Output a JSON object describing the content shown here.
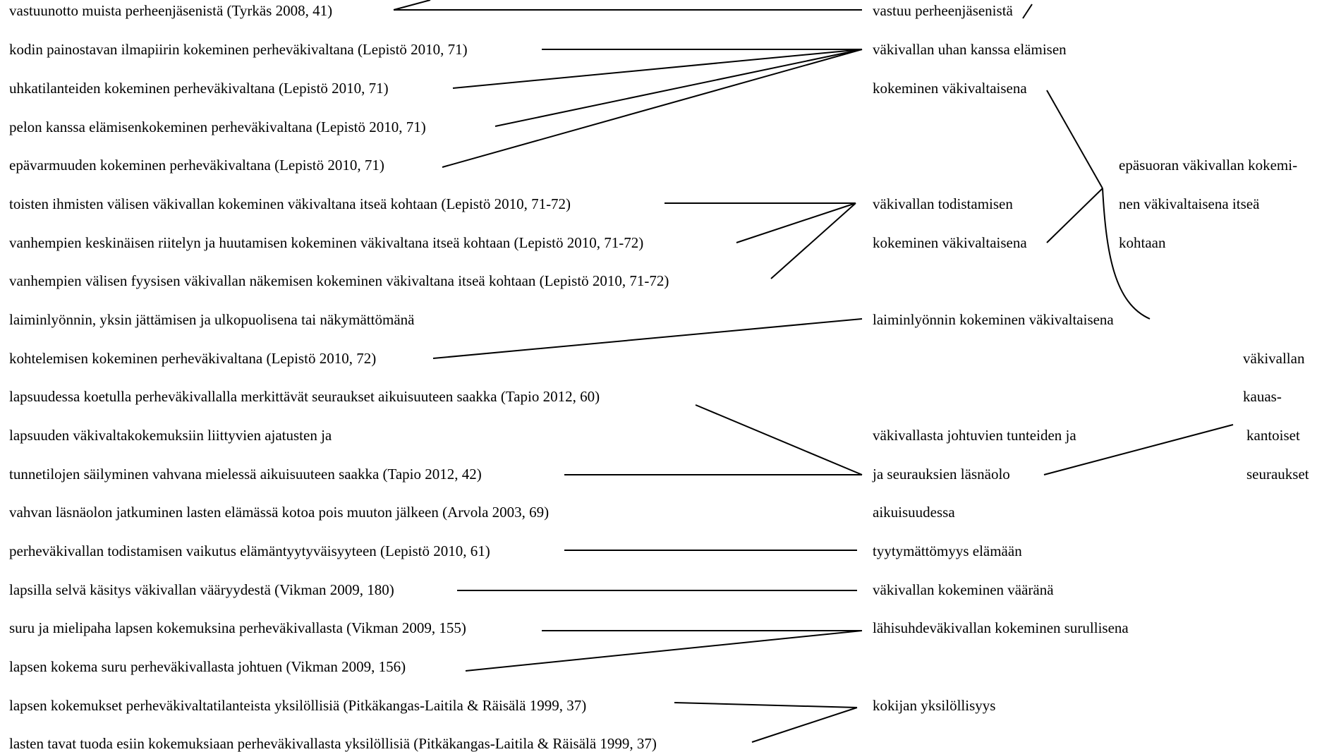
{
  "left_items": [
    "vastuunotto muista perheenjäsenistä (Tyrkäs 2008, 41)",
    "kodin painostavan ilmapiirin kokeminen perheväkivaltana (Lepistö 2010, 71)",
    "uhkatilanteiden kokeminen perheväkivaltana (Lepistö 2010, 71)",
    "pelon kanssa elämisenkokeminen perheväkivaltana (Lepistö 2010, 71)",
    "epävarmuuden kokeminen perheväkivaltana (Lepistö 2010, 71)",
    "toisten ihmisten välisen väkivallan kokeminen väkivaltana itseä kohtaan (Lepistö 2010, 71-72)",
    "vanhempien keskinäisen riitelyn ja huutamisen kokeminen väkivaltana itseä kohtaan (Lepistö 2010, 71-72)",
    "vanhempien välisen fyysisen väkivallan näkemisen kokeminen väkivaltana itseä kohtaan (Lepistö 2010, 71-72)",
    "laiminlyönnin, yksin jättämisen ja ulkopuolisena tai näkymättömänä",
    "kohtelemisen kokeminen perheväkivaltana (Lepistö 2010, 72)",
    "lapsuudessa koetulla perheväkivallalla merkittävät seuraukset aikuisuuteen saakka (Tapio 2012, 60)",
    "lapsuuden väkivaltakokemuksiin liittyvien ajatusten ja",
    " tunnetilojen säilyminen vahvana mielessä aikuisuuteen saakka (Tapio 2012, 42)",
    "vahvan läsnäolon jatkuminen lasten elämässä kotoa pois muuton jälkeen (Arvola 2003, 69)",
    "perheväkivallan todistamisen vaikutus elämäntyytyväisyyteen (Lepistö 2010, 61)",
    "lapsilla selvä käsitys väkivallan vääryydestä (Vikman 2009, 180)",
    "suru ja mielipaha lapsen kokemuksina perheväkivallasta (Vikman 2009, 155)",
    "lapsen kokema suru perheväkivallasta johtuen (Vikman 2009, 156)",
    "lapsen kokemukset perheväkivaltatilanteista yksilöllisiä (Pitkäkangas-Laitila & Räisälä 1999, 37)",
    "lasten tavat tuoda esiin kokemuksiaan perheväkivallasta yksilöllisiä (Pitkäkangas-Laitila & Räisälä 1999, 37)"
  ],
  "middle_items": [
    "vastuu perheenjäsenistä",
    "väkivallan uhan kanssa elämisen",
    "kokeminen väkivaltaisena",
    "väkivallan todistamisen",
    "kokeminen väkivaltaisena",
    "laiminlyönnin kokeminen väkivaltaisena",
    "väkivallasta johtuvien tunteiden ja",
    "ja seurauksien läsnäolo",
    "aikuisuudessa",
    "tyytymättömyys elämään",
    "väkivallan kokeminen vääränä",
    "lähisuhdeväkivallan kokeminen surullisena",
    "kokijan yksilöllisyys"
  ],
  "upper_items": [
    "epäsuoran väkivallan kokemi-",
    "nen väkivaltaisena itseä",
    "kohtaan"
  ],
  "main_items": [
    "väkivallan",
    "kauas-",
    "kantoiset",
    "seuraukset"
  ]
}
